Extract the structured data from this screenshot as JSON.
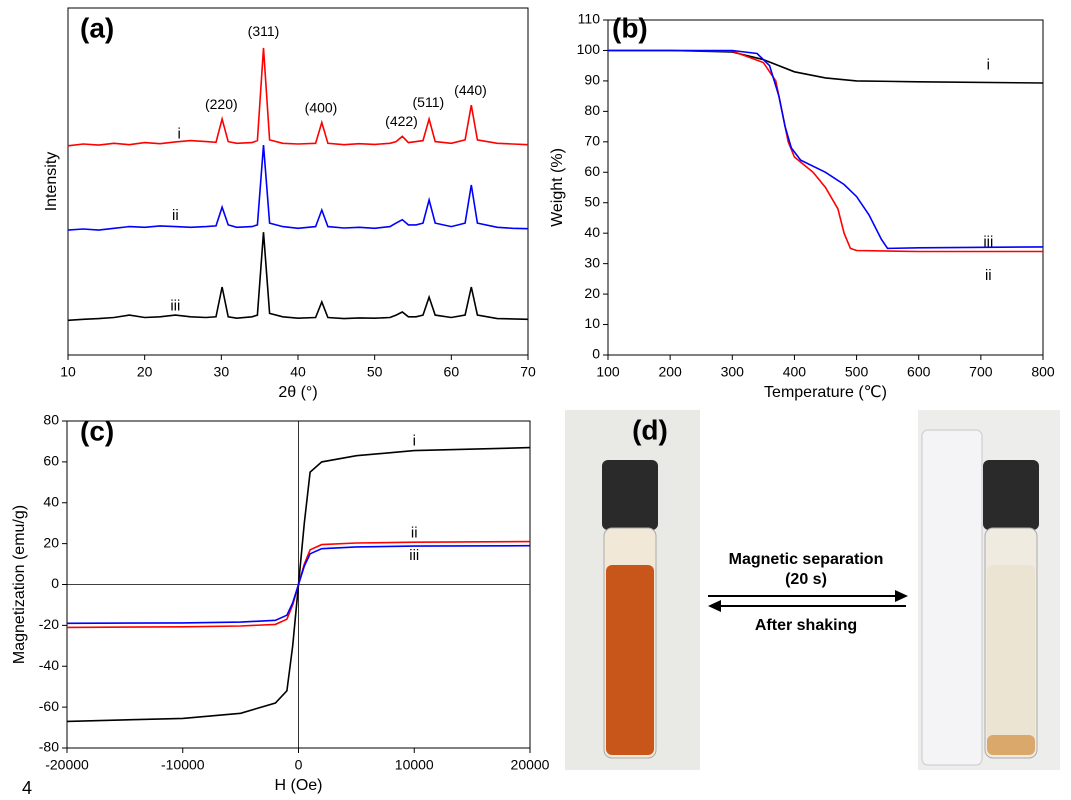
{
  "chart_data": [
    {
      "type": "line",
      "panel_label": "(a)",
      "xlabel": "2θ (°)",
      "ylabel": "Intensity",
      "x": [
        10,
        12,
        14,
        16,
        18,
        20,
        22,
        24,
        26,
        28,
        29.3,
        30.1,
        30.9,
        32,
        34,
        34.7,
        35.5,
        36.3,
        38,
        40,
        42.3,
        43.1,
        43.9,
        46,
        48,
        50,
        52,
        52.8,
        53.6,
        54.4,
        55.4,
        56.3,
        57.1,
        57.9,
        60,
        61.8,
        62.6,
        63.4,
        66,
        68,
        70
      ],
      "series": [
        {
          "name": "i",
          "color": "#ff0000",
          "values": [
            60.3,
            60.8,
            60.5,
            61,
            60.6,
            61.2,
            60.9,
            61.4,
            61.8,
            61.5,
            61.3,
            68,
            61.5,
            61,
            61.2,
            61.8,
            88.5,
            62,
            61,
            60.8,
            61,
            67,
            61,
            60.6,
            60.9,
            60.7,
            61,
            61.5,
            63,
            61.2,
            61.5,
            61.8,
            68,
            61.5,
            61,
            62,
            72,
            62,
            61,
            60.8,
            60.6
          ]
        },
        {
          "name": "ii",
          "color": "#0000ff",
          "values": [
            36,
            36.3,
            36,
            36.5,
            37,
            36.8,
            37.2,
            37,
            36.8,
            37,
            37.2,
            42.6,
            37.5,
            36.8,
            37,
            37.5,
            60.5,
            38,
            37,
            36.5,
            37,
            41.8,
            37,
            36.6,
            36.8,
            36.5,
            37,
            38,
            39,
            37.5,
            37.5,
            38,
            44.7,
            38,
            37,
            38,
            49,
            38,
            36.8,
            36.5,
            36.4
          ]
        },
        {
          "name": "iii",
          "color": "#000000",
          "values": [
            10,
            10.3,
            10.5,
            10.8,
            11.5,
            10.8,
            11,
            11.5,
            11,
            10.8,
            11,
            19.6,
            11,
            10.6,
            11,
            11.5,
            35.4,
            12,
            11,
            10.6,
            10.8,
            15.3,
            10.8,
            10.5,
            10.7,
            10.6,
            10.8,
            11.5,
            12.4,
            11,
            11,
            11.5,
            16.7,
            11.5,
            10.8,
            11.5,
            19.6,
            11.5,
            10.5,
            10.4,
            10.3
          ]
        }
      ],
      "annotations": [
        "(220)",
        "(311)",
        "(400)",
        "(422)",
        "(511)",
        "(440)"
      ],
      "xlim": [
        10,
        70
      ],
      "xticks": [
        10,
        20,
        30,
        40,
        50,
        60,
        70
      ],
      "ylim": [
        0,
        100
      ]
    },
    {
      "type": "line",
      "panel_label": "(b)",
      "xlabel": "Temperature (℃)",
      "ylabel": "Weight (%)",
      "series": [
        {
          "name": "i",
          "color": "#000000",
          "x": [
            100,
            200,
            300,
            350,
            400,
            450,
            500,
            600,
            800
          ],
          "values": [
            100,
            100,
            99.5,
            97,
            93,
            91,
            90,
            89.7,
            89.3
          ]
        },
        {
          "name": "ii",
          "color": "#ff0000",
          "x": [
            100,
            200,
            300,
            350,
            370,
            380,
            390,
            400,
            430,
            450,
            470,
            480,
            490,
            500,
            600,
            800
          ],
          "values": [
            100,
            100,
            99.8,
            96,
            90,
            80,
            70,
            65,
            60,
            55,
            48,
            40,
            35,
            34.3,
            34,
            34
          ]
        },
        {
          "name": "iii",
          "color": "#0000ff",
          "x": [
            100,
            200,
            300,
            340,
            360,
            375,
            385,
            395,
            410,
            450,
            480,
            500,
            520,
            540,
            550,
            600,
            800
          ],
          "values": [
            100,
            100,
            100,
            99,
            95,
            85,
            75,
            68,
            64,
            60,
            56,
            52,
            46,
            38,
            35,
            35.2,
            35.5
          ]
        }
      ],
      "xlim": [
        100,
        800
      ],
      "xticks": [
        100,
        200,
        300,
        400,
        500,
        600,
        700,
        800
      ],
      "ylim": [
        0,
        110
      ],
      "yticks": [
        0,
        10,
        20,
        30,
        40,
        50,
        60,
        70,
        80,
        90,
        100,
        110
      ]
    },
    {
      "type": "line",
      "panel_label": "(c)",
      "xlabel": "H (Oe)",
      "ylabel": "Magnetization (emu/g)",
      "origin_lines": true,
      "x": [
        -20000,
        -10000,
        -5000,
        -2000,
        -1000,
        -500,
        0,
        500,
        1000,
        2000,
        5000,
        10000,
        20000
      ],
      "series": [
        {
          "name": "i",
          "color": "#000000",
          "values": [
            -67,
            -65.5,
            -63,
            -58,
            -52,
            -30,
            0,
            30,
            55,
            60,
            63,
            65.5,
            67
          ]
        },
        {
          "name": "ii",
          "color": "#ff0000",
          "values": [
            -21,
            -20.7,
            -20.3,
            -19.5,
            -17,
            -10,
            0,
            10,
            17,
            19.5,
            20.3,
            20.7,
            21
          ]
        },
        {
          "name": "iii",
          "color": "#0000ff",
          "values": [
            -19,
            -18.8,
            -18.4,
            -17.5,
            -15,
            -9,
            0,
            9,
            15,
            17.5,
            18.4,
            18.8,
            19
          ]
        }
      ],
      "xlim": [
        -20000,
        20000
      ],
      "xticks": [
        -20000,
        -10000,
        0,
        10000,
        20000
      ],
      "ylim": [
        -80,
        80
      ],
      "yticks": [
        -80,
        -60,
        -40,
        -20,
        0,
        20,
        40,
        60,
        80
      ]
    }
  ],
  "photo": {
    "label": "(d)",
    "forward": "Magnetic separation",
    "time": "(20 s)",
    "backward": "After shaking"
  },
  "page_number": "4"
}
